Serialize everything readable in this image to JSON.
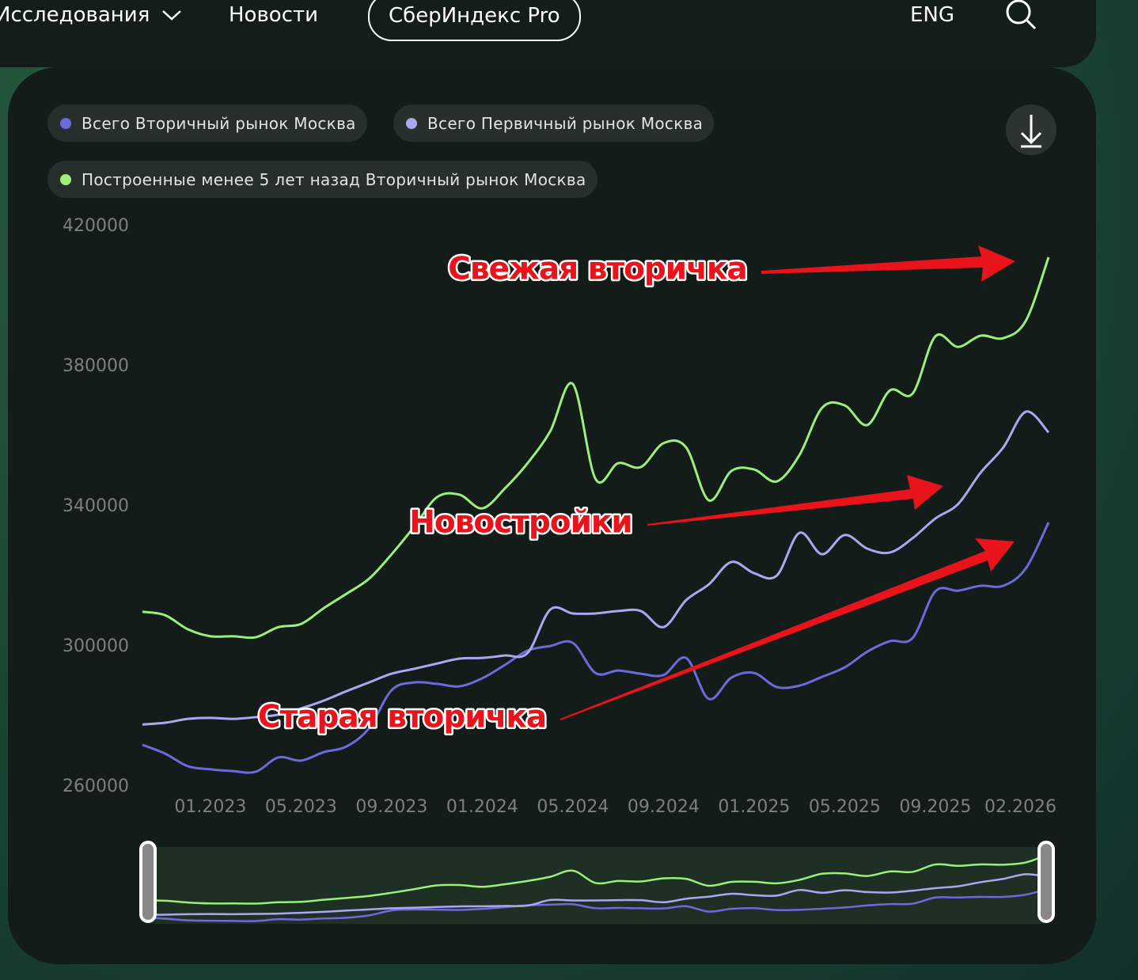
{
  "nav": {
    "items": [
      "Исследования",
      "Новости",
      "СберИндекс Pro",
      "ENG"
    ]
  },
  "chart_data": {
    "type": "line",
    "categories": [
      null,
      null,
      null,
      "01.2023",
      null,
      null,
      null,
      "05.2023",
      null,
      null,
      null,
      "09.2023",
      null,
      null,
      null,
      "01.2024",
      null,
      null,
      null,
      "05.2024",
      null,
      null,
      null,
      "09.2024",
      null,
      null,
      null,
      "01.2025",
      null,
      null,
      null,
      "05.2025",
      null,
      null,
      null,
      "09.2025",
      null,
      null,
      null,
      null,
      "02.2026"
    ],
    "series": [
      {
        "name": "Всего Вторичный рынок Москва",
        "color": "#6b6bdc",
        "values": [
          272000,
          269500,
          265900,
          265000,
          264500,
          264300,
          268400,
          267500,
          269900,
          271500,
          276700,
          287600,
          289800,
          289400,
          288700,
          291000,
          294800,
          298900,
          300200,
          301100,
          292500,
          293200,
          292300,
          291900,
          296800,
          285100,
          291200,
          292500,
          288500,
          288900,
          291400,
          294100,
          298600,
          301600,
          302500,
          315800,
          316000,
          317400,
          317400,
          322400,
          335500
        ]
      },
      {
        "name": "Всего Первичный рынок Москва",
        "color": "#a9a9f0",
        "values": [
          277800,
          278300,
          279400,
          279700,
          279400,
          279900,
          280600,
          282400,
          284600,
          287300,
          289800,
          292300,
          293700,
          295200,
          296600,
          296800,
          297500,
          298200,
          310600,
          309500,
          309500,
          310200,
          310200,
          305600,
          313300,
          317800,
          324200,
          321000,
          320300,
          332500,
          326400,
          331900,
          328000,
          326900,
          331000,
          336600,
          340700,
          349700,
          356900,
          367100,
          361200
        ]
      },
      {
        "name": "Построенные менее 5 лет назад Вторичный рынок Москва",
        "color": "#9bef7a",
        "values": [
          310000,
          309000,
          305000,
          303000,
          303000,
          302700,
          305600,
          306500,
          311000,
          315100,
          319400,
          326400,
          334300,
          342700,
          343400,
          339500,
          345200,
          352400,
          361500,
          375000,
          347900,
          352400,
          351300,
          358100,
          356900,
          341800,
          350200,
          350600,
          347200,
          354700,
          368200,
          368900,
          363300,
          373200,
          372300,
          388600,
          385600,
          388800,
          388100,
          393100,
          411200
        ]
      }
    ],
    "ylim": [
      260000,
      420000
    ],
    "yticks": [
      260000,
      300000,
      340000,
      380000,
      420000
    ],
    "grid": false,
    "annotations": [
      "Свежая вторичка",
      "Новостройки",
      "Старая вторичка"
    ]
  }
}
